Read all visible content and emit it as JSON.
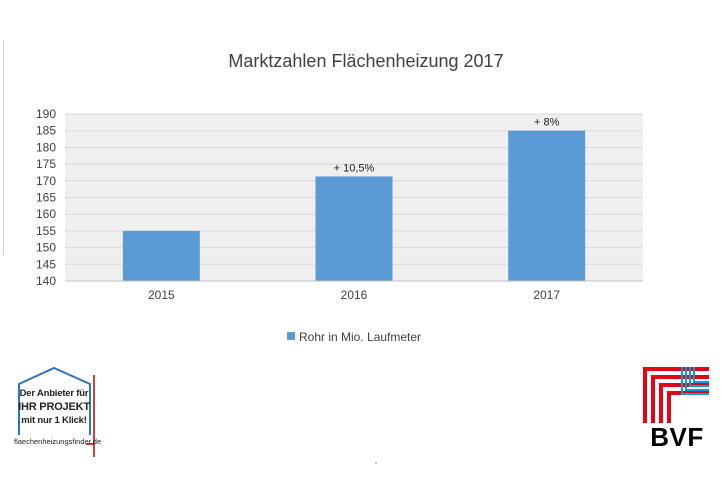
{
  "chart_data": {
    "type": "bar",
    "title": "Marktzahlen Flächenheizung 2017",
    "categories": [
      "2015",
      "2016",
      "2017"
    ],
    "series": [
      {
        "name": "Rohr in Mio. Laufmeter",
        "values": [
          155,
          171.3,
          185
        ],
        "color": "#5b9bd5"
      }
    ],
    "data_labels": [
      "",
      "+ 10,5%",
      "+ 8%"
    ],
    "ylim": [
      140,
      190
    ],
    "yticks": [
      140,
      145,
      150,
      155,
      160,
      165,
      170,
      175,
      180,
      185,
      190
    ],
    "grid": true,
    "legend_position": "bottom",
    "plot_background": "#efefef",
    "gridline_color": "#d9d9d9"
  },
  "logos": {
    "finder": {
      "line1": "Der Anbieter für",
      "line2": "IHR PROJEKT",
      "line3": "mit nur 1 Klick!",
      "url": "flaechenheizungsfinder.de",
      "house_color": "#2e75b6",
      "accent_color": "#c00000"
    },
    "bvf": {
      "text": "BVF",
      "red": "#e30613",
      "blue": "#00a0e3"
    }
  }
}
